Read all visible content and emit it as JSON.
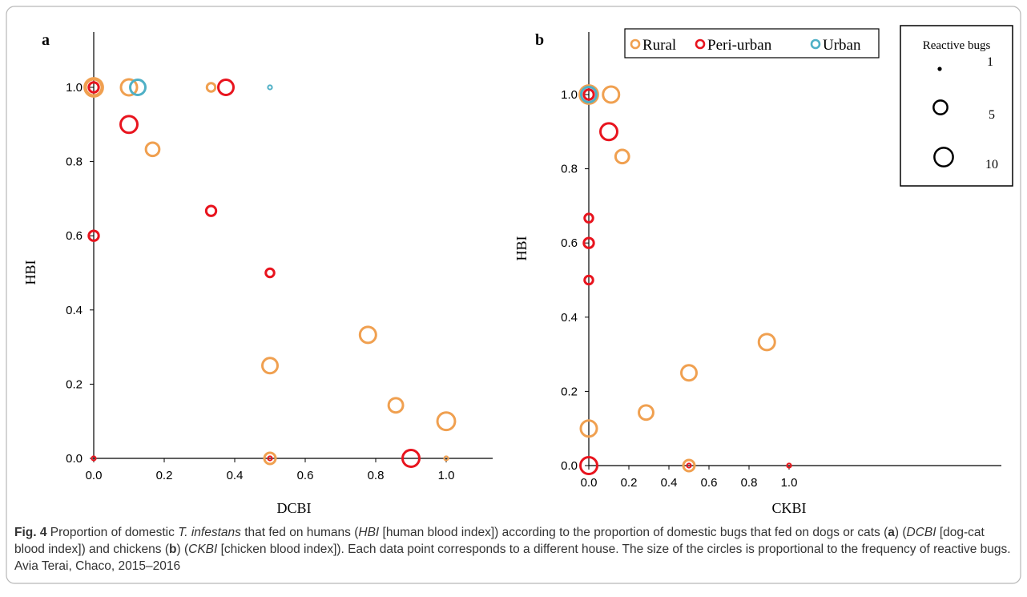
{
  "colors": {
    "rural": "#f0a050",
    "peri_urban": "#e8141e",
    "urban": "#4fb0c6",
    "axis": "#000000",
    "frame_border": "#b8b8b8",
    "caption_text": "#333333"
  },
  "legend": {
    "entries": [
      {
        "key": "rural",
        "label": "Rural"
      },
      {
        "key": "peri_urban",
        "label": "Peri-urban"
      },
      {
        "key": "urban",
        "label": "Urban"
      }
    ]
  },
  "size_legend": {
    "title": "Reactive bugs",
    "entries": [
      {
        "value": 1,
        "label": "1"
      },
      {
        "value": 5,
        "label": "5"
      },
      {
        "value": 10,
        "label": "10"
      }
    ]
  },
  "caption": {
    "fig_label": "Fig. 4",
    "t1": "  Proportion of domestic ",
    "species": "T. infestans",
    "t2": " that fed on humans (",
    "hbi": "HBI",
    "t3": " [human blood index]) according to the proportion of domestic bugs that fed on dogs or cats (",
    "a": "a",
    "t4": ") (",
    "dcbi": "DCBI",
    "t5": " [dog-cat blood index]) and chickens (",
    "b": "b",
    "t6": ") (",
    "ckbi": "CKBI",
    "t7": " [chicken blood index]). Each data point corresponds to a different house. The size of the circles is proportional to the frequency of reactive bugs. Avia Terai, Chaco, 2015–2016"
  },
  "chart_data": [
    {
      "panel": "a",
      "type": "scatter",
      "xlabel": "DCBI",
      "ylabel": "HBI",
      "xlim": [
        0,
        1.15
      ],
      "ylim": [
        0,
        1.15
      ],
      "xticks": [
        "0.0",
        "0.2",
        "0.4",
        "0.6",
        "0.8",
        "1.0"
      ],
      "yticks": [
        "0.0",
        "0.2",
        "0.4",
        "0.6",
        "0.8",
        "1.0"
      ],
      "series": [
        {
          "name": "Rural",
          "key": "rural",
          "points": [
            {
              "x": 0.0,
              "y": 1.0,
              "bugs": 12
            },
            {
              "x": 0.0,
              "y": 1.0,
              "bugs": 9
            },
            {
              "x": 0.1,
              "y": 1.0,
              "bugs": 9
            },
            {
              "x": 0.167,
              "y": 0.833,
              "bugs": 6
            },
            {
              "x": 0.333,
              "y": 1.0,
              "bugs": 2
            },
            {
              "x": 0.5,
              "y": 0.25,
              "bugs": 8
            },
            {
              "x": 0.5,
              "y": 0.0,
              "bugs": 4
            },
            {
              "x": 0.778,
              "y": 0.333,
              "bugs": 9
            },
            {
              "x": 0.857,
              "y": 0.143,
              "bugs": 7
            },
            {
              "x": 1.0,
              "y": 0.1,
              "bugs": 11
            },
            {
              "x": 1.0,
              "y": 0.0,
              "bugs": 1
            }
          ]
        },
        {
          "name": "Peri-urban",
          "key": "peri_urban",
          "points": [
            {
              "x": 0.0,
              "y": 1.0,
              "bugs": 3
            },
            {
              "x": 0.0,
              "y": 0.6,
              "bugs": 3
            },
            {
              "x": 0.0,
              "y": 0.0,
              "bugs": 1
            },
            {
              "x": 0.1,
              "y": 0.9,
              "bugs": 10
            },
            {
              "x": 0.333,
              "y": 0.667,
              "bugs": 3
            },
            {
              "x": 0.375,
              "y": 1.0,
              "bugs": 8
            },
            {
              "x": 0.5,
              "y": 0.5,
              "bugs": 2
            },
            {
              "x": 0.5,
              "y": 0.0,
              "bugs": 1
            },
            {
              "x": 0.9,
              "y": 0.0,
              "bugs": 10
            }
          ]
        },
        {
          "name": "Urban",
          "key": "urban",
          "points": [
            {
              "x": 0.125,
              "y": 1.0,
              "bugs": 8
            },
            {
              "x": 0.5,
              "y": 1.0,
              "bugs": 1
            }
          ]
        }
      ]
    },
    {
      "panel": "b",
      "type": "scatter",
      "xlabel": "CKBI",
      "ylabel": "HBI",
      "xlim": [
        0,
        1.15
      ],
      "ylim": [
        0,
        1.15
      ],
      "xticks": [
        "0.0",
        "0.2",
        "0.4",
        "0.6",
        "0.8",
        "1.0"
      ],
      "yticks": [
        "0.0",
        "0.2",
        "0.4",
        "0.6",
        "0.8",
        "1.0"
      ],
      "series": [
        {
          "name": "Rural",
          "key": "rural",
          "points": [
            {
              "x": 0.0,
              "y": 1.0,
              "bugs": 12
            },
            {
              "x": 0.111,
              "y": 1.0,
              "bugs": 9
            },
            {
              "x": 0.167,
              "y": 0.833,
              "bugs": 6
            },
            {
              "x": 0.0,
              "y": 0.1,
              "bugs": 9
            },
            {
              "x": 0.286,
              "y": 0.143,
              "bugs": 7
            },
            {
              "x": 0.5,
              "y": 0.25,
              "bugs": 8
            },
            {
              "x": 0.5,
              "y": 0.0,
              "bugs": 4
            },
            {
              "x": 0.889,
              "y": 0.333,
              "bugs": 9
            },
            {
              "x": 1.0,
              "y": 0.0,
              "bugs": 1
            }
          ]
        },
        {
          "name": "Peri-urban",
          "key": "peri_urban",
          "points": [
            {
              "x": 0.0,
              "y": 1.0,
              "bugs": 3
            },
            {
              "x": 0.1,
              "y": 0.9,
              "bugs": 10
            },
            {
              "x": 0.0,
              "y": 0.667,
              "bugs": 2
            },
            {
              "x": 0.0,
              "y": 0.6,
              "bugs": 3
            },
            {
              "x": 0.0,
              "y": 0.5,
              "bugs": 2
            },
            {
              "x": 0.0,
              "y": 0.0,
              "bugs": 10
            },
            {
              "x": 0.5,
              "y": 0.0,
              "bugs": 1
            },
            {
              "x": 1.0,
              "y": 0.0,
              "bugs": 1
            }
          ]
        },
        {
          "name": "Urban",
          "key": "urban",
          "points": [
            {
              "x": 0.0,
              "y": 1.0,
              "bugs": 8
            }
          ]
        }
      ]
    }
  ]
}
